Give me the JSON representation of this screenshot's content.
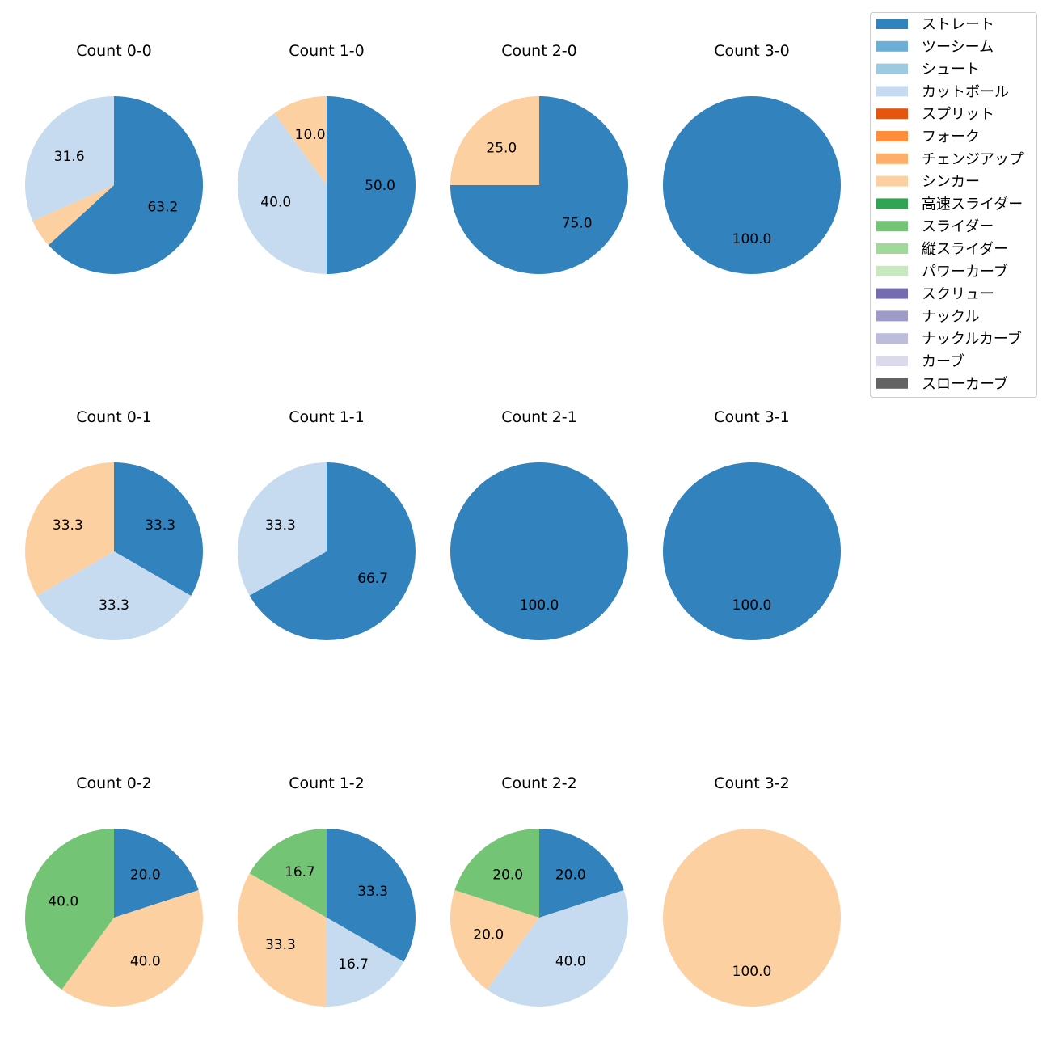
{
  "chart_data": {
    "type": "pie",
    "legend": {
      "placement": "top-right",
      "entries": [
        {
          "name": "ストレート",
          "color": "#3182bd"
        },
        {
          "name": "ツーシーム",
          "color": "#6baed6"
        },
        {
          "name": "シュート",
          "color": "#9ecae1"
        },
        {
          "name": "カットボール",
          "color": "#c6dbef"
        },
        {
          "name": "スプリット",
          "color": "#e6550d"
        },
        {
          "name": "フォーク",
          "color": "#fd8d3c"
        },
        {
          "name": "チェンジアップ",
          "color": "#fdae6b"
        },
        {
          "name": "シンカー",
          "color": "#fdd0a2"
        },
        {
          "name": "高速スライダー",
          "color": "#31a354"
        },
        {
          "name": "スライダー",
          "color": "#74c476"
        },
        {
          "name": "縦スライダー",
          "color": "#a1d99b"
        },
        {
          "name": "パワーカーブ",
          "color": "#c7e9c0"
        },
        {
          "name": "スクリュー",
          "color": "#756bb1"
        },
        {
          "name": "ナックル",
          "color": "#9e9ac8"
        },
        {
          "name": "ナックルカーブ",
          "color": "#bcbddc"
        },
        {
          "name": "カーブ",
          "color": "#dadaeb"
        },
        {
          "name": "スローカーブ",
          "color": "#636363"
        }
      ]
    },
    "charts": [
      {
        "title": "Count 0-0",
        "slices": [
          {
            "pitch": "ストレート",
            "value": 63.2,
            "label": "63.2"
          },
          {
            "pitch": "シンカー",
            "value": 5.2,
            "label": ""
          },
          {
            "pitch": "カットボール",
            "value": 31.6,
            "label": "31.6"
          }
        ]
      },
      {
        "title": "Count 1-0",
        "slices": [
          {
            "pitch": "ストレート",
            "value": 50.0,
            "label": "50.0"
          },
          {
            "pitch": "カットボール",
            "value": 40.0,
            "label": "40.0"
          },
          {
            "pitch": "シンカー",
            "value": 10.0,
            "label": "10.0"
          }
        ]
      },
      {
        "title": "Count 2-0",
        "slices": [
          {
            "pitch": "ストレート",
            "value": 75.0,
            "label": "75.0"
          },
          {
            "pitch": "シンカー",
            "value": 25.0,
            "label": "25.0"
          }
        ]
      },
      {
        "title": "Count 3-0",
        "slices": [
          {
            "pitch": "ストレート",
            "value": 100.0,
            "label": "100.0"
          }
        ]
      },
      {
        "title": "Count 0-1",
        "slices": [
          {
            "pitch": "ストレート",
            "value": 33.3,
            "label": "33.3"
          },
          {
            "pitch": "カットボール",
            "value": 33.3,
            "label": "33.3"
          },
          {
            "pitch": "シンカー",
            "value": 33.3,
            "label": "33.3"
          }
        ]
      },
      {
        "title": "Count 1-1",
        "slices": [
          {
            "pitch": "ストレート",
            "value": 66.7,
            "label": "66.7"
          },
          {
            "pitch": "カットボール",
            "value": 33.3,
            "label": "33.3"
          }
        ]
      },
      {
        "title": "Count 2-1",
        "slices": [
          {
            "pitch": "ストレート",
            "value": 100.0,
            "label": "100.0"
          }
        ]
      },
      {
        "title": "Count 3-1",
        "slices": [
          {
            "pitch": "ストレート",
            "value": 100.0,
            "label": "100.0"
          }
        ]
      },
      {
        "title": "Count 0-2",
        "slices": [
          {
            "pitch": "ストレート",
            "value": 20.0,
            "label": "20.0"
          },
          {
            "pitch": "シンカー",
            "value": 40.0,
            "label": "40.0"
          },
          {
            "pitch": "スライダー",
            "value": 40.0,
            "label": "40.0"
          }
        ]
      },
      {
        "title": "Count 1-2",
        "slices": [
          {
            "pitch": "ストレート",
            "value": 33.3,
            "label": "33.3"
          },
          {
            "pitch": "カットボール",
            "value": 16.7,
            "label": "16.7"
          },
          {
            "pitch": "シンカー",
            "value": 33.3,
            "label": "33.3"
          },
          {
            "pitch": "スライダー",
            "value": 16.7,
            "label": "16.7"
          }
        ]
      },
      {
        "title": "Count 2-2",
        "slices": [
          {
            "pitch": "ストレート",
            "value": 20.0,
            "label": "20.0"
          },
          {
            "pitch": "カットボール",
            "value": 40.0,
            "label": "40.0"
          },
          {
            "pitch": "シンカー",
            "value": 20.0,
            "label": "20.0"
          },
          {
            "pitch": "スライダー",
            "value": 20.0,
            "label": "20.0"
          }
        ]
      },
      {
        "title": "Count 3-2",
        "slices": [
          {
            "pitch": "シンカー",
            "value": 100.0,
            "label": "100.0"
          }
        ]
      }
    ]
  }
}
